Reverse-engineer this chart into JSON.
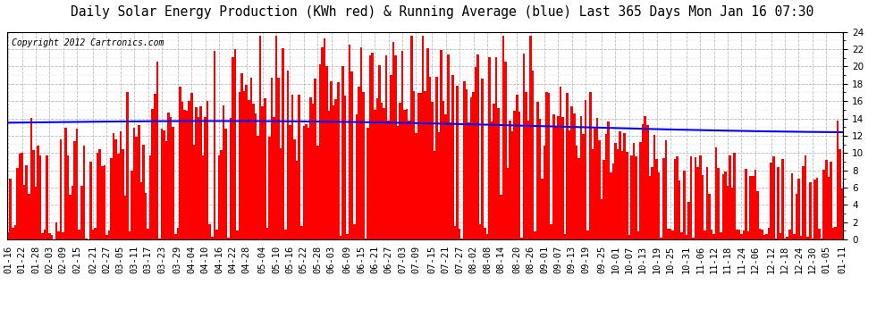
{
  "title": "Daily Solar Energy Production (KWh red) & Running Average (blue) Last 365 Days Mon Jan 16 07:30",
  "copyright": "Copyright 2012 Cartronics.com",
  "ylim": [
    0,
    24.0
  ],
  "yticks": [
    0.0,
    2.0,
    4.0,
    6.0,
    8.0,
    10.0,
    12.0,
    14.0,
    16.0,
    18.0,
    20.0,
    22.0,
    24.0
  ],
  "bar_color": "#FF0000",
  "avg_color": "#0000FF",
  "background_color": "#FFFFFF",
  "grid_color": "#BBBBBB",
  "title_fontsize": 10.5,
  "copyright_fontsize": 7,
  "tick_fontsize": 7.5,
  "x_labels": [
    "01-16",
    "01-22",
    "01-28",
    "02-03",
    "02-09",
    "02-15",
    "02-21",
    "02-27",
    "03-05",
    "03-11",
    "03-17",
    "03-23",
    "03-29",
    "04-04",
    "04-10",
    "04-16",
    "04-22",
    "04-28",
    "05-04",
    "05-10",
    "05-16",
    "05-22",
    "05-28",
    "06-03",
    "06-09",
    "06-15",
    "06-21",
    "06-27",
    "07-03",
    "07-09",
    "07-15",
    "07-21",
    "07-27",
    "08-02",
    "08-08",
    "08-14",
    "08-20",
    "08-26",
    "09-01",
    "09-07",
    "09-13",
    "09-19",
    "09-25",
    "10-01",
    "10-07",
    "10-13",
    "10-19",
    "10-25",
    "10-31",
    "11-06",
    "11-12",
    "11-18",
    "11-24",
    "12-06",
    "12-12",
    "12-18",
    "12-24",
    "12-30",
    "01-05",
    "01-11"
  ]
}
